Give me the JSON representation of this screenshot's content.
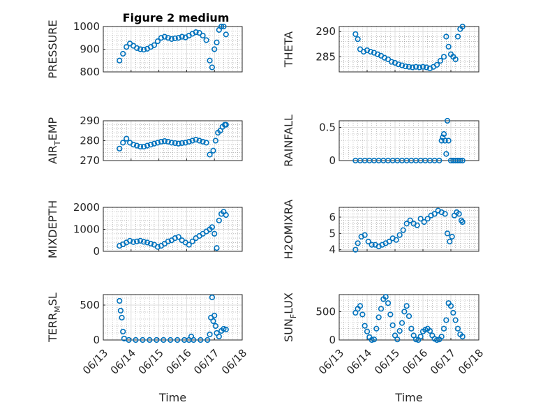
{
  "figure": {
    "title": "Figure 2 medium"
  },
  "colors": {
    "marker": "#0072BD",
    "axis": "#262626",
    "grid": "#dddddd",
    "minor_grid": "#9a9a9a"
  },
  "chart_data": [
    {
      "type": "scatter",
      "ylabel": "PRESSURE",
      "ylim": [
        800,
        1000
      ],
      "yticks": [
        800,
        900,
        1000
      ],
      "xticklabels": false,
      "x": [
        "06/13 14:00",
        "06/13 17:00",
        "06/13 20:00",
        "06/13 23:00",
        "06/14 02:00",
        "06/14 05:00",
        "06/14 08:00",
        "06/14 11:00",
        "06/14 14:00",
        "06/14 17:00",
        "06/14 20:00",
        "06/14 23:00",
        "06/15 02:00",
        "06/15 05:00",
        "06/15 08:00",
        "06/15 11:00",
        "06/15 14:00",
        "06/15 17:00",
        "06/15 20:00",
        "06/15 23:00",
        "06/16 02:00",
        "06/16 05:00",
        "06/16 08:00",
        "06/16 11:00",
        "06/16 14:00",
        "06/16 17:00",
        "06/16 20:00",
        "06/16 22:00",
        "06/17 00:00",
        "06/17 02:00",
        "06/17 04:00",
        "06/17 06:00",
        "06/17 08:00",
        "06/17 10:00"
      ],
      "y": [
        850,
        880,
        910,
        925,
        915,
        905,
        900,
        898,
        902,
        910,
        918,
        935,
        950,
        955,
        950,
        945,
        948,
        950,
        955,
        952,
        960,
        968,
        975,
        972,
        960,
        940,
        850,
        820,
        900,
        930,
        985,
        1000,
        1000,
        965
      ]
    },
    {
      "type": "scatter",
      "ylabel": "THETA",
      "ylim": [
        282,
        291
      ],
      "yticks": [
        285,
        290
      ],
      "xticklabels": false,
      "x": [
        "06/13 14:00",
        "06/13 16:00",
        "06/13 18:00",
        "06/13 21:00",
        "06/14 00:00",
        "06/14 03:00",
        "06/14 06:00",
        "06/14 09:00",
        "06/14 12:00",
        "06/14 15:00",
        "06/14 18:00",
        "06/14 21:00",
        "06/15 00:00",
        "06/15 03:00",
        "06/15 06:00",
        "06/15 09:00",
        "06/15 12:00",
        "06/15 15:00",
        "06/15 18:00",
        "06/15 21:00",
        "06/16 00:00",
        "06/16 03:00",
        "06/16 06:00",
        "06/16 09:00",
        "06/16 12:00",
        "06/16 15:00",
        "06/16 18:00",
        "06/16 20:00",
        "06/16 22:00",
        "06/17 00:00",
        "06/17 02:00",
        "06/17 04:00",
        "06/17 06:00",
        "06/17 08:00",
        "06/17 10:00"
      ],
      "y": [
        289.5,
        288.5,
        286.5,
        286,
        286.3,
        286,
        285.8,
        285.5,
        285.2,
        284.8,
        284.5,
        284,
        283.8,
        283.5,
        283.3,
        283.1,
        283,
        282.9,
        283,
        282.9,
        283,
        282.9,
        282.7,
        283,
        283.4,
        284.2,
        285,
        289,
        287,
        285.5,
        285,
        284.5,
        289,
        290.5,
        291
      ]
    },
    {
      "type": "scatter",
      "ylabel_main": "AIR",
      "ylabel_sub": "T",
      "ylabel_rest": "EMP",
      "ylim": [
        270,
        290
      ],
      "yticks": [
        270,
        280,
        290
      ],
      "xticklabels": false,
      "x": [
        "06/13 14:00",
        "06/13 17:00",
        "06/13 20:00",
        "06/13 23:00",
        "06/14 02:00",
        "06/14 05:00",
        "06/14 08:00",
        "06/14 11:00",
        "06/14 14:00",
        "06/14 17:00",
        "06/14 20:00",
        "06/14 23:00",
        "06/15 02:00",
        "06/15 05:00",
        "06/15 08:00",
        "06/15 11:00",
        "06/15 14:00",
        "06/15 17:00",
        "06/15 20:00",
        "06/15 23:00",
        "06/16 02:00",
        "06/16 05:00",
        "06/16 08:00",
        "06/16 11:00",
        "06/16 14:00",
        "06/16 17:00",
        "06/16 20:00",
        "06/16 23:00",
        "06/17 01:00",
        "06/17 03:00",
        "06/17 05:00",
        "06/17 07:00",
        "06/17 09:00",
        "06/17 10:00"
      ],
      "y": [
        276,
        279,
        281,
        279,
        278,
        277.5,
        277,
        277,
        277.5,
        278,
        278.5,
        279,
        279.5,
        279.8,
        279.5,
        279,
        278.8,
        278.5,
        278.8,
        279,
        279.5,
        280,
        280.5,
        280,
        279.5,
        279,
        273,
        275,
        280,
        284,
        285,
        287,
        288,
        288
      ]
    },
    {
      "type": "scatter",
      "ylabel": "RAINFALL",
      "ylim": [
        0,
        0.6
      ],
      "yticks": [
        0,
        0.5
      ],
      "xticklabels": false,
      "x": [
        "06/13 14:00",
        "06/13 18:00",
        "06/13 22:00",
        "06/14 02:00",
        "06/14 06:00",
        "06/14 10:00",
        "06/14 14:00",
        "06/14 18:00",
        "06/14 22:00",
        "06/15 02:00",
        "06/15 06:00",
        "06/15 10:00",
        "06/15 14:00",
        "06/15 18:00",
        "06/15 22:00",
        "06/16 02:00",
        "06/16 06:00",
        "06/16 10:00",
        "06/16 14:00",
        "06/16 16:00",
        "06/16 17:00",
        "06/16 18:00",
        "06/16 19:00",
        "06/16 20:00",
        "06/16 21:00",
        "06/16 22:00",
        "06/17 00:00",
        "06/17 02:00",
        "06/17 04:00",
        "06/17 06:00",
        "06/17 08:00",
        "06/17 10:00"
      ],
      "y": [
        0,
        0,
        0,
        0,
        0,
        0,
        0,
        0,
        0,
        0,
        0,
        0,
        0,
        0,
        0,
        0,
        0,
        0,
        0,
        0.3,
        0.35,
        0.4,
        0.3,
        0.1,
        0.6,
        0.3,
        0,
        0,
        0,
        0,
        0,
        0
      ]
    },
    {
      "type": "scatter",
      "ylabel": "MIXDEPTH",
      "ylim": [
        0,
        2000
      ],
      "yticks": [
        0,
        1000,
        2000
      ],
      "xticklabels": false,
      "x": [
        "06/13 14:00",
        "06/13 17:00",
        "06/13 20:00",
        "06/13 23:00",
        "06/14 02:00",
        "06/14 05:00",
        "06/14 08:00",
        "06/14 11:00",
        "06/14 14:00",
        "06/14 17:00",
        "06/14 20:00",
        "06/14 23:00",
        "06/15 02:00",
        "06/15 05:00",
        "06/15 08:00",
        "06/15 11:00",
        "06/15 14:00",
        "06/15 17:00",
        "06/15 20:00",
        "06/15 23:00",
        "06/16 02:00",
        "06/16 05:00",
        "06/16 08:00",
        "06/16 11:00",
        "06/16 14:00",
        "06/16 17:00",
        "06/16 20:00",
        "06/16 22:00",
        "06/17 00:00",
        "06/17 02:00",
        "06/17 04:00",
        "06/17 06:00",
        "06/17 08:00",
        "06/17 10:00"
      ],
      "y": [
        250,
        320,
        400,
        480,
        420,
        450,
        480,
        430,
        400,
        350,
        300,
        200,
        250,
        350,
        450,
        500,
        600,
        650,
        500,
        400,
        300,
        450,
        600,
        700,
        800,
        900,
        1000,
        1100,
        800,
        150,
        1400,
        1700,
        1800,
        1650
      ]
    },
    {
      "type": "scatter",
      "ylabel": "H2OMIXRA",
      "ylim": [
        3.9,
        6.6
      ],
      "yticks": [
        4,
        5,
        6
      ],
      "xticklabels": false,
      "x": [
        "06/13 14:00",
        "06/13 16:00",
        "06/13 19:00",
        "06/13 22:00",
        "06/14 01:00",
        "06/14 04:00",
        "06/14 07:00",
        "06/14 10:00",
        "06/14 13:00",
        "06/14 16:00",
        "06/14 19:00",
        "06/14 22:00",
        "06/15 01:00",
        "06/15 04:00",
        "06/15 07:00",
        "06/15 10:00",
        "06/15 13:00",
        "06/15 16:00",
        "06/15 19:00",
        "06/15 22:00",
        "06/16 01:00",
        "06/16 04:00",
        "06/16 07:00",
        "06/16 10:00",
        "06/16 13:00",
        "06/16 16:00",
        "06/16 19:00",
        "06/16 21:00",
        "06/16 23:00",
        "06/17 01:00",
        "06/17 03:00",
        "06/17 05:00",
        "06/17 07:00",
        "06/17 09:00",
        "06/17 10:00"
      ],
      "y": [
        4.0,
        4.4,
        4.8,
        4.9,
        4.5,
        4.3,
        4.3,
        4.2,
        4.3,
        4.4,
        4.5,
        4.7,
        4.6,
        4.9,
        5.2,
        5.6,
        5.8,
        5.6,
        5.5,
        5.9,
        5.7,
        5.9,
        6.1,
        6.2,
        6.4,
        6.3,
        6.2,
        5.0,
        4.5,
        4.8,
        6.1,
        6.3,
        6.2,
        5.8,
        5.7
      ]
    },
    {
      "type": "scatter",
      "ylabel_main": "TERR",
      "ylabel_sub": "M",
      "ylabel_rest": "SL",
      "ylim": [
        0,
        650
      ],
      "yticks": [
        0,
        500
      ],
      "xlabel": "Time",
      "xticks": [
        "06/13",
        "06/14",
        "06/15",
        "06/16",
        "06/17",
        "06/18"
      ],
      "x": [
        "06/13 14:00",
        "06/13 15:00",
        "06/13 16:00",
        "06/13 17:00",
        "06/13 18:00",
        "06/13 22:00",
        "06/14 04:00",
        "06/14 10:00",
        "06/14 16:00",
        "06/14 22:00",
        "06/15 04:00",
        "06/15 10:00",
        "06/15 16:00",
        "06/15 22:00",
        "06/16 02:00",
        "06/16 04:00",
        "06/16 06:00",
        "06/16 12:00",
        "06/16 18:00",
        "06/16 20:00",
        "06/16 21:00",
        "06/16 22:00",
        "06/16 23:00",
        "06/17 00:00",
        "06/17 01:00",
        "06/17 02:00",
        "06/17 04:00",
        "06/17 06:00",
        "06/17 08:00",
        "06/17 10:00"
      ],
      "y": [
        560,
        420,
        320,
        120,
        20,
        0,
        0,
        0,
        0,
        0,
        0,
        0,
        0,
        0,
        0,
        50,
        0,
        0,
        0,
        80,
        320,
        610,
        270,
        350,
        200,
        100,
        50,
        130,
        160,
        150
      ]
    },
    {
      "type": "scatter",
      "ylabel_main": "SUN",
      "ylabel_sub": "F",
      "ylabel_rest": "LUX",
      "ylim": [
        0,
        800
      ],
      "yticks": [
        0,
        500
      ],
      "xlabel": "Time",
      "xticks": [
        "06/13",
        "06/14",
        "06/15",
        "06/16",
        "06/17",
        "06/18"
      ],
      "x": [
        "06/13 14:00",
        "06/13 16:00",
        "06/13 18:00",
        "06/13 20:00",
        "06/13 22:00",
        "06/14 00:00",
        "06/14 02:00",
        "06/14 04:00",
        "06/14 06:00",
        "06/14 08:00",
        "06/14 10:00",
        "06/14 12:00",
        "06/14 14:00",
        "06/14 16:00",
        "06/14 18:00",
        "06/14 20:00",
        "06/14 22:00",
        "06/15 00:00",
        "06/15 02:00",
        "06/15 04:00",
        "06/15 06:00",
        "06/15 08:00",
        "06/15 10:00",
        "06/15 12:00",
        "06/15 14:00",
        "06/15 16:00",
        "06/15 18:00",
        "06/15 20:00",
        "06/15 22:00",
        "06/16 00:00",
        "06/16 02:00",
        "06/16 04:00",
        "06/16 06:00",
        "06/16 08:00",
        "06/16 10:00",
        "06/16 12:00",
        "06/16 14:00",
        "06/16 16:00",
        "06/16 18:00",
        "06/16 20:00",
        "06/16 22:00",
        "06/17 00:00",
        "06/17 02:00",
        "06/17 04:00",
        "06/17 06:00",
        "06/17 08:00",
        "06/17 10:00"
      ],
      "y": [
        480,
        550,
        600,
        450,
        250,
        150,
        50,
        0,
        10,
        200,
        400,
        550,
        720,
        760,
        650,
        450,
        260,
        80,
        10,
        160,
        300,
        500,
        600,
        420,
        200,
        80,
        10,
        0,
        60,
        150,
        180,
        200,
        160,
        80,
        20,
        0,
        10,
        60,
        200,
        350,
        650,
        600,
        480,
        350,
        200,
        100,
        60
      ]
    }
  ]
}
